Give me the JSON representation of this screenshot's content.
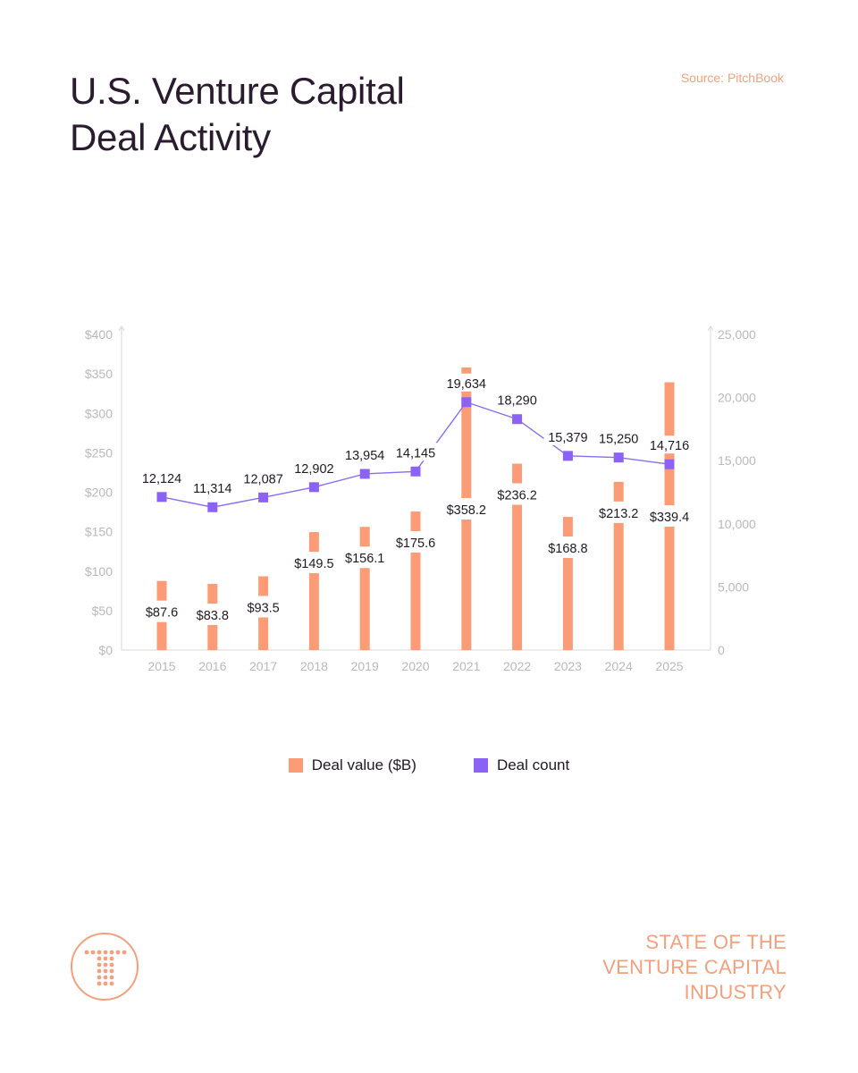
{
  "header": {
    "title_line1": "U.S. Venture Capital",
    "title_line2": "Deal Activity",
    "source": "Source: PitchBook"
  },
  "colors": {
    "title": "#2a1b2e",
    "accent": "#f4a07c",
    "bar": "#fc9c76",
    "line": "#8b6cf4",
    "marker": "#8b62f5",
    "axis_text": "#b9b9b9"
  },
  "chart_data": {
    "type": "bar+line",
    "categories": [
      "2015",
      "2016",
      "2017",
      "2018",
      "2019",
      "2020",
      "2021",
      "2022",
      "2023",
      "2024",
      "2025"
    ],
    "series": [
      {
        "name": "Deal value ($B)",
        "type": "bar",
        "axis": "left",
        "values": [
          87.6,
          83.8,
          93.5,
          149.5,
          156.1,
          175.6,
          358.2,
          236.2,
          168.8,
          213.2,
          339.4
        ],
        "labels": [
          "$87.6",
          "$83.8",
          "$93.5",
          "$149.5",
          "$156.1",
          "$175.6",
          "$358.2",
          "$236.2",
          "$168.8",
          "$213.2",
          "$339.4"
        ]
      },
      {
        "name": "Deal count",
        "type": "line",
        "axis": "right",
        "values": [
          12124,
          11314,
          12087,
          12902,
          13954,
          14145,
          19634,
          18290,
          15379,
          15250,
          14716
        ],
        "labels": [
          "12,124",
          "11,314",
          "12,087",
          "12,902",
          "13,954",
          "14,145",
          "19,634",
          "18,290",
          "15,379",
          "15,250",
          "14,716"
        ]
      }
    ],
    "left_axis": {
      "ylim": [
        0,
        400
      ],
      "ticks": [
        0,
        50,
        100,
        150,
        200,
        250,
        300,
        350,
        400
      ],
      "tick_labels": [
        "$0",
        "$50",
        "$100",
        "$150",
        "$200",
        "$250",
        "$300",
        "$350",
        "$400"
      ]
    },
    "right_axis": {
      "ylim": [
        0,
        25000
      ],
      "ticks": [
        0,
        5000,
        10000,
        15000,
        20000,
        25000
      ],
      "tick_labels": [
        "0",
        "5,000",
        "10,000",
        "15,000",
        "20,000",
        "25,000"
      ]
    },
    "grid": false,
    "legend_position": "bottom-center"
  },
  "legend": {
    "items": [
      {
        "label": "Deal value ($B)"
      },
      {
        "label": "Deal count"
      }
    ]
  },
  "footer": {
    "brand_line1": "STATE OF THE",
    "brand_line2": "VENTURE CAPITAL",
    "brand_line3": "INDUSTRY"
  }
}
